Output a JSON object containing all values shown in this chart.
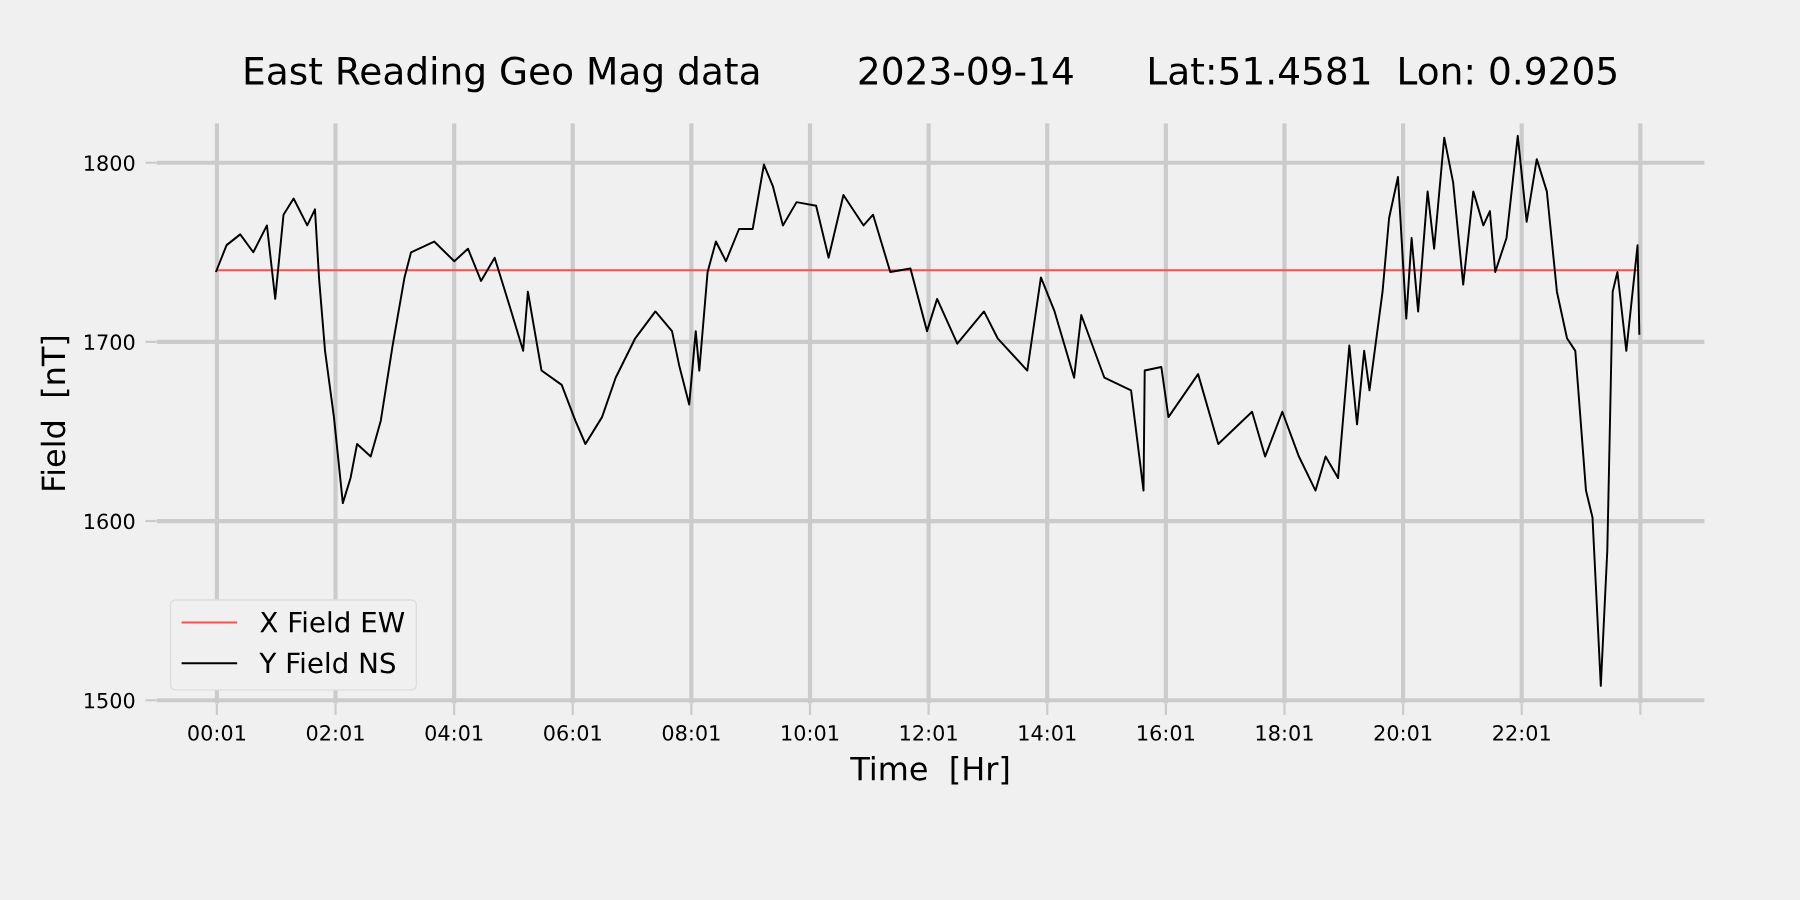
{
  "chart_data": {
    "type": "line",
    "title": "East Reading Geo Mag data        2023-09-14      Lat:51.4581  Lon: 0.9205",
    "xlabel": "Time  [Hr]",
    "ylabel": "Field  [nT]",
    "xlim": [
      -1.0,
      25.1
    ],
    "ylim": [
      1498,
      1822
    ],
    "xticks": [
      {
        "value": 0.0167,
        "label": "00:01"
      },
      {
        "value": 2.0167,
        "label": "02:01"
      },
      {
        "value": 4.0167,
        "label": "04:01"
      },
      {
        "value": 6.0167,
        "label": "06:01"
      },
      {
        "value": 8.0167,
        "label": "08:01"
      },
      {
        "value": 10.0167,
        "label": "10:01"
      },
      {
        "value": 12.0167,
        "label": "12:01"
      },
      {
        "value": 14.0167,
        "label": "14:01"
      },
      {
        "value": 16.0167,
        "label": "16:01"
      },
      {
        "value": 18.0167,
        "label": "18:01"
      },
      {
        "value": 20.0167,
        "label": "20:01"
      },
      {
        "value": 22.0167,
        "label": "22:01"
      },
      {
        "value": 24.0167,
        "label": null
      }
    ],
    "yticks": [
      1500,
      1600,
      1700,
      1800
    ],
    "grid": true,
    "legend": "bottom left",
    "series": [
      {
        "name": "X Field EW",
        "color": "#ff4c4c",
        "x": [
          0.0,
          24.0
        ],
        "values": [
          1740,
          1740
        ]
      },
      {
        "name": "Y Field NS",
        "color": "#000000",
        "x": [
          0.0,
          0.18,
          0.41,
          0.63,
          0.86,
          1.0,
          1.14,
          1.31,
          1.54,
          1.67,
          1.74,
          1.84,
          1.99,
          2.14,
          2.27,
          2.38,
          2.61,
          2.78,
          2.98,
          3.18,
          3.29,
          3.68,
          4.02,
          4.25,
          4.47,
          4.7,
          4.98,
          5.18,
          5.26,
          5.49,
          5.83,
          6.06,
          6.23,
          6.51,
          6.74,
          7.07,
          7.41,
          7.69,
          7.81,
          7.98,
          8.09,
          8.15,
          8.29,
          8.43,
          8.6,
          8.82,
          9.05,
          9.24,
          9.39,
          9.56,
          9.79,
          10.12,
          10.33,
          10.58,
          10.92,
          11.08,
          11.37,
          11.71,
          11.99,
          12.16,
          12.5,
          12.95,
          13.18,
          13.68,
          13.91,
          14.14,
          14.47,
          14.59,
          14.98,
          15.43,
          15.64,
          15.66,
          15.94,
          16.06,
          16.56,
          16.9,
          17.47,
          17.69,
          17.98,
          18.26,
          18.54,
          18.71,
          18.92,
          19.11,
          19.24,
          19.36,
          19.45,
          19.67,
          19.78,
          19.93,
          20.07,
          20.16,
          20.27,
          20.43,
          20.54,
          20.71,
          20.86,
          21.03,
          21.2,
          21.37,
          21.48,
          21.57,
          21.76,
          21.95,
          22.1,
          22.27,
          22.44,
          22.61,
          22.78,
          22.92,
          23.1,
          23.21,
          23.35,
          23.46,
          23.55,
          23.63,
          23.78,
          23.97,
          24.0
        ],
        "values": [
          1739,
          1754,
          1760,
          1750,
          1765,
          1724,
          1771,
          1780,
          1765,
          1774,
          1735,
          1695,
          1658,
          1610,
          1624,
          1643,
          1636,
          1656,
          1698,
          1736,
          1750,
          1756,
          1745,
          1752,
          1734,
          1747,
          1717,
          1695,
          1728,
          1684,
          1676,
          1656,
          1643,
          1658,
          1680,
          1702,
          1717,
          1706,
          1687,
          1665,
          1706,
          1684,
          1739,
          1756,
          1745,
          1763,
          1763,
          1799,
          1787,
          1765,
          1778,
          1776,
          1747,
          1782,
          1765,
          1771,
          1739,
          1741,
          1706,
          1724,
          1699,
          1717,
          1702,
          1684,
          1736,
          1717,
          1680,
          1715,
          1680,
          1673,
          1617,
          1684,
          1686,
          1658,
          1682,
          1643,
          1661,
          1636,
          1661,
          1636,
          1617,
          1636,
          1624,
          1698,
          1654,
          1695,
          1673,
          1728,
          1769,
          1792,
          1713,
          1758,
          1717,
          1784,
          1752,
          1814,
          1789,
          1732,
          1784,
          1765,
          1773,
          1739,
          1758,
          1815,
          1767,
          1802,
          1784,
          1728,
          1702,
          1695,
          1617,
          1602,
          1508,
          1584,
          1728,
          1739,
          1695,
          1754,
          1704
        ]
      }
    ]
  }
}
